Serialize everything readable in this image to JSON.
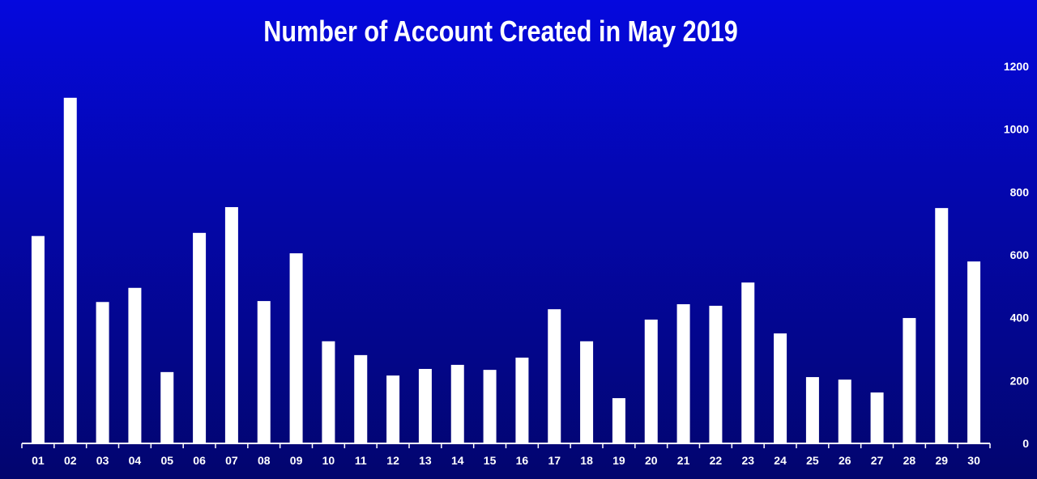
{
  "chart_data": {
    "type": "bar",
    "title": "Number of Account Created in May 2019",
    "xlabel": "",
    "ylabel": "",
    "ylim": [
      0,
      1200
    ],
    "yticks": [
      0,
      200,
      400,
      600,
      800,
      1000,
      1200
    ],
    "y_axis_position": "right",
    "grid": false,
    "bar_color": "#ffffff",
    "background_color": "#0407a8",
    "categories": [
      "01",
      "02",
      "03",
      "04",
      "05",
      "06",
      "07",
      "08",
      "09",
      "10",
      "11",
      "12",
      "13",
      "14",
      "15",
      "16",
      "17",
      "18",
      "19",
      "20",
      "21",
      "22",
      "23",
      "24",
      "25",
      "26",
      "27",
      "28",
      "29",
      "30"
    ],
    "values": [
      660,
      1100,
      450,
      495,
      227,
      670,
      752,
      453,
      605,
      325,
      281,
      216,
      237,
      250,
      234,
      273,
      427,
      325,
      144,
      394,
      443,
      438,
      512,
      350,
      211,
      203,
      162,
      399,
      749,
      579
    ]
  }
}
